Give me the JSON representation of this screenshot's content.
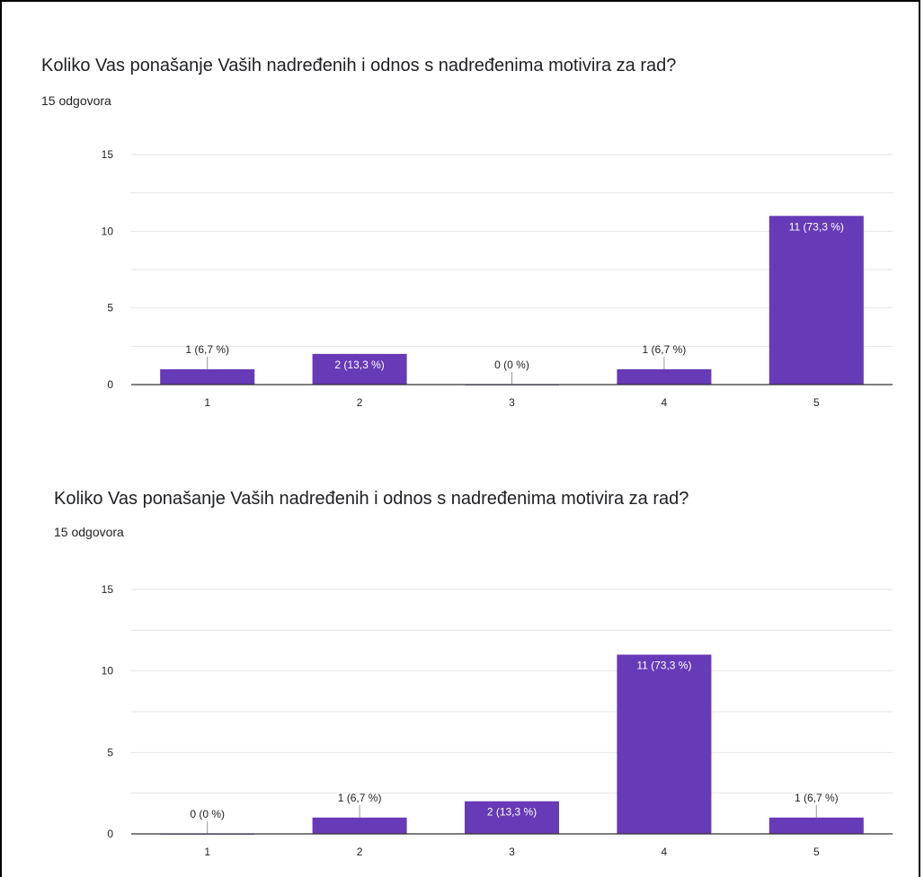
{
  "colors": {
    "bar": "#673ab7",
    "grid": "#e6e6e6",
    "axis": "#333333",
    "leader": "#999999",
    "label_outside": "#222222",
    "label_inside": "#ffffff"
  },
  "chart_data": [
    {
      "type": "bar",
      "title": "Koliko Vas ponašanje Vaših nadređenih i odnos s nadređenima motivira za rad?",
      "subtitle": "15 odgovora",
      "categories": [
        "1",
        "2",
        "3",
        "4",
        "5"
      ],
      "values": [
        1,
        2,
        0,
        1,
        11
      ],
      "labels": [
        "1 (6,7 %)",
        "2 (13,3 %)",
        "0 (0 %)",
        "1 (6,7 %)",
        "11 (73,3 %)"
      ],
      "ylim": [
        0,
        15
      ],
      "yticks": [
        "0",
        "5",
        "10",
        "15"
      ],
      "ytick_values": [
        0,
        5,
        10,
        15
      ],
      "grid": true,
      "xlabel": "",
      "ylabel": ""
    },
    {
      "type": "bar",
      "title": "Koliko Vas ponašanje Vaših nadređenih i odnos s nadređenima motivira za rad?",
      "subtitle": "15 odgovora",
      "categories": [
        "1",
        "2",
        "3",
        "4",
        "5"
      ],
      "values": [
        0,
        1,
        2,
        11,
        1
      ],
      "labels": [
        "0 (0 %)",
        "1 (6,7 %)",
        "2 (13,3 %)",
        "11 (73,3 %)",
        "1 (6,7 %)"
      ],
      "ylim": [
        0,
        15
      ],
      "yticks": [
        "0",
        "5",
        "10",
        "15"
      ],
      "ytick_values": [
        0,
        5,
        10,
        15
      ],
      "grid": true,
      "xlabel": "",
      "ylabel": ""
    }
  ]
}
